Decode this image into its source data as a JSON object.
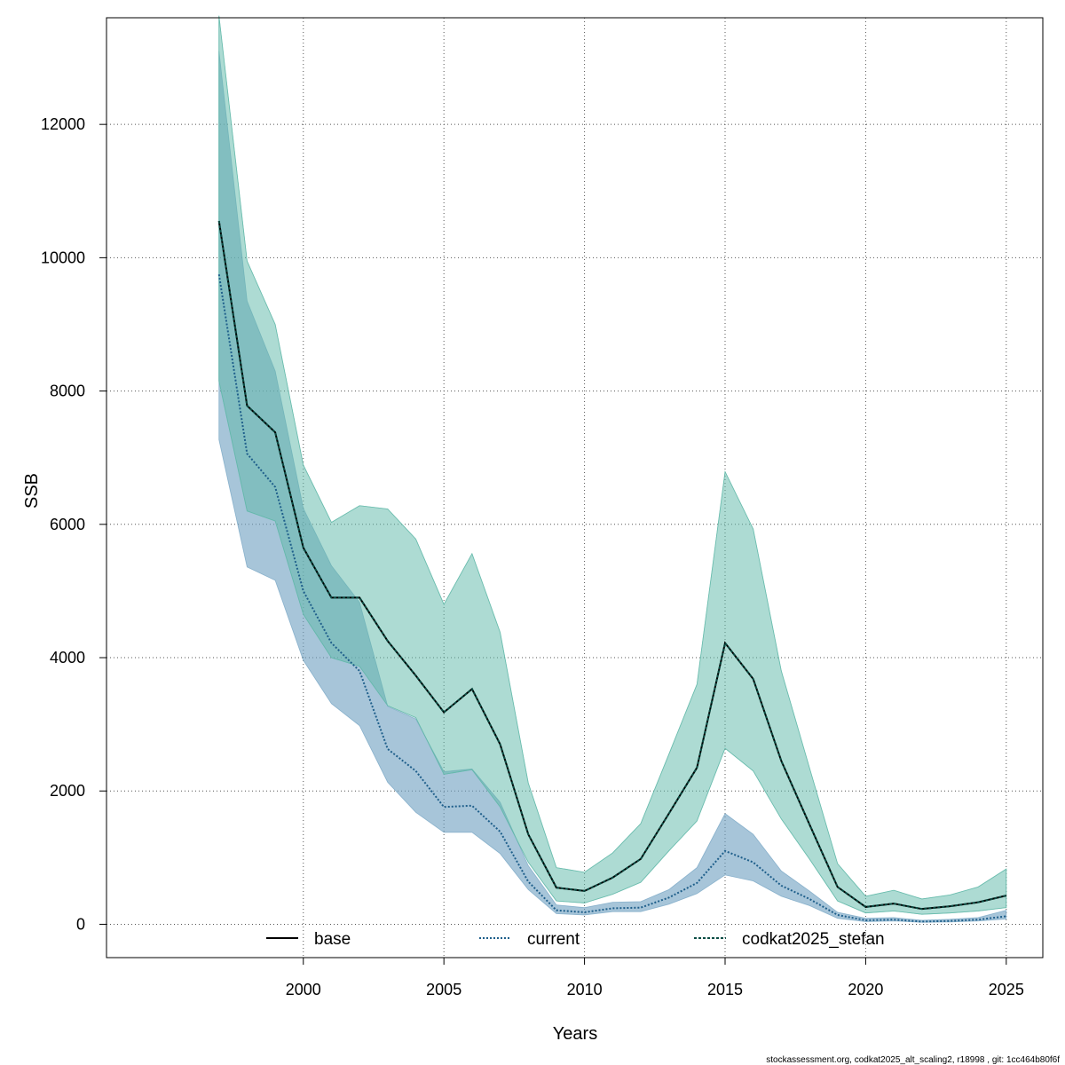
{
  "chart_data": {
    "type": "line",
    "title": "",
    "xlabel": "Years",
    "ylabel": "SSB",
    "xlim": [
      1993,
      2026.3
    ],
    "ylim": [
      -500,
      13600
    ],
    "x_ticks": [
      2000,
      2005,
      2010,
      2015,
      2020,
      2025
    ],
    "y_ticks": [
      0,
      2000,
      4000,
      6000,
      8000,
      10000,
      12000
    ],
    "grid": true,
    "legend": {
      "position": "bottom",
      "entries": [
        "base",
        "current",
        "codkat2025_stefan"
      ]
    },
    "series": [
      {
        "name": "base",
        "color": "#000000",
        "line": "solid",
        "band_color": "#5fb8a8",
        "x": [
          1997,
          1998,
          1999,
          2000,
          2001,
          2002,
          2003,
          2004,
          2005,
          2006,
          2007,
          2008,
          2009,
          2010,
          2011,
          2012,
          2013,
          2014,
          2015,
          2016,
          2017,
          2018,
          2019,
          2020,
          2021,
          2022,
          2023,
          2024,
          2025
        ],
        "values": [
          10550,
          7780,
          7380,
          5650,
          4900,
          4900,
          4250,
          3730,
          3180,
          3530,
          2700,
          1350,
          550,
          500,
          700,
          980,
          1660,
          2350,
          4220,
          3680,
          2450,
          1500,
          560,
          260,
          310,
          230,
          270,
          330,
          430
        ],
        "lower": [
          8150,
          6200,
          6050,
          4650,
          4000,
          3870,
          3280,
          3100,
          2250,
          2320,
          1760,
          930,
          350,
          320,
          450,
          630,
          1100,
          1550,
          2640,
          2300,
          1580,
          980,
          350,
          170,
          200,
          150,
          170,
          200,
          250
        ],
        "upper": [
          13630,
          9950,
          9000,
          6890,
          6030,
          6280,
          6230,
          5780,
          4800,
          5560,
          4380,
          2120,
          850,
          780,
          1070,
          1510,
          2550,
          3600,
          6790,
          5930,
          3800,
          2350,
          910,
          420,
          510,
          380,
          440,
          560,
          830
        ]
      },
      {
        "name": "current",
        "color": "#1f5f8b",
        "line": "dotted",
        "band_color": "#6d9fc0",
        "x": [
          1997,
          1998,
          1999,
          2000,
          2001,
          2002,
          2003,
          2004,
          2005,
          2006,
          2007,
          2008,
          2009,
          2010,
          2011,
          2012,
          2013,
          2014,
          2015,
          2016,
          2017,
          2018,
          2019,
          2020,
          2021,
          2022,
          2023,
          2024,
          2025
        ],
        "values": [
          9750,
          7060,
          6560,
          5000,
          4220,
          3800,
          2630,
          2300,
          1760,
          1780,
          1390,
          640,
          210,
          180,
          240,
          250,
          400,
          620,
          1100,
          930,
          580,
          380,
          140,
          60,
          70,
          40,
          50,
          70,
          120
        ],
        "lower": [
          7270,
          5360,
          5160,
          3960,
          3310,
          2980,
          2130,
          1680,
          1380,
          1380,
          1060,
          520,
          160,
          140,
          190,
          190,
          300,
          460,
          740,
          650,
          420,
          280,
          90,
          40,
          50,
          30,
          35,
          50,
          80
        ],
        "upper": [
          13100,
          9350,
          8300,
          6240,
          5380,
          4830,
          3270,
          3080,
          2290,
          2330,
          1830,
          880,
          290,
          250,
          330,
          340,
          520,
          850,
          1660,
          1350,
          800,
          500,
          180,
          90,
          100,
          60,
          75,
          100,
          210
        ]
      },
      {
        "name": "codkat2025_stefan",
        "color": "#0b4d44",
        "line": "dashed",
        "band_color": "#5fb8a8",
        "x": [
          1997,
          1998,
          1999,
          2000,
          2001,
          2002,
          2003,
          2004,
          2005,
          2006,
          2007,
          2008,
          2009,
          2010,
          2011,
          2012,
          2013,
          2014,
          2015,
          2016,
          2017,
          2018,
          2019,
          2020,
          2021,
          2022,
          2023,
          2024,
          2025
        ],
        "values": [
          10550,
          7780,
          7380,
          5650,
          4900,
          4900,
          4250,
          3730,
          3180,
          3530,
          2700,
          1350,
          550,
          500,
          700,
          980,
          1660,
          2350,
          4220,
          3680,
          2450,
          1500,
          560,
          260,
          310,
          230,
          270,
          330,
          430
        ],
        "lower": [
          8150,
          6200,
          6050,
          4650,
          4000,
          3870,
          3280,
          3100,
          2250,
          2320,
          1760,
          930,
          350,
          320,
          450,
          630,
          1100,
          1550,
          2640,
          2300,
          1580,
          980,
          350,
          170,
          200,
          150,
          170,
          200,
          250
        ],
        "upper": [
          13630,
          9950,
          9000,
          6890,
          6030,
          6280,
          6230,
          5780,
          4800,
          5560,
          4380,
          2120,
          850,
          780,
          1070,
          1510,
          2550,
          3600,
          6790,
          5930,
          3800,
          2350,
          910,
          420,
          510,
          380,
          440,
          560,
          830
        ]
      }
    ]
  },
  "footer": "stockassessment.org, codkat2025_alt_scaling2, r18998 , git: 1cc464b80f6f"
}
